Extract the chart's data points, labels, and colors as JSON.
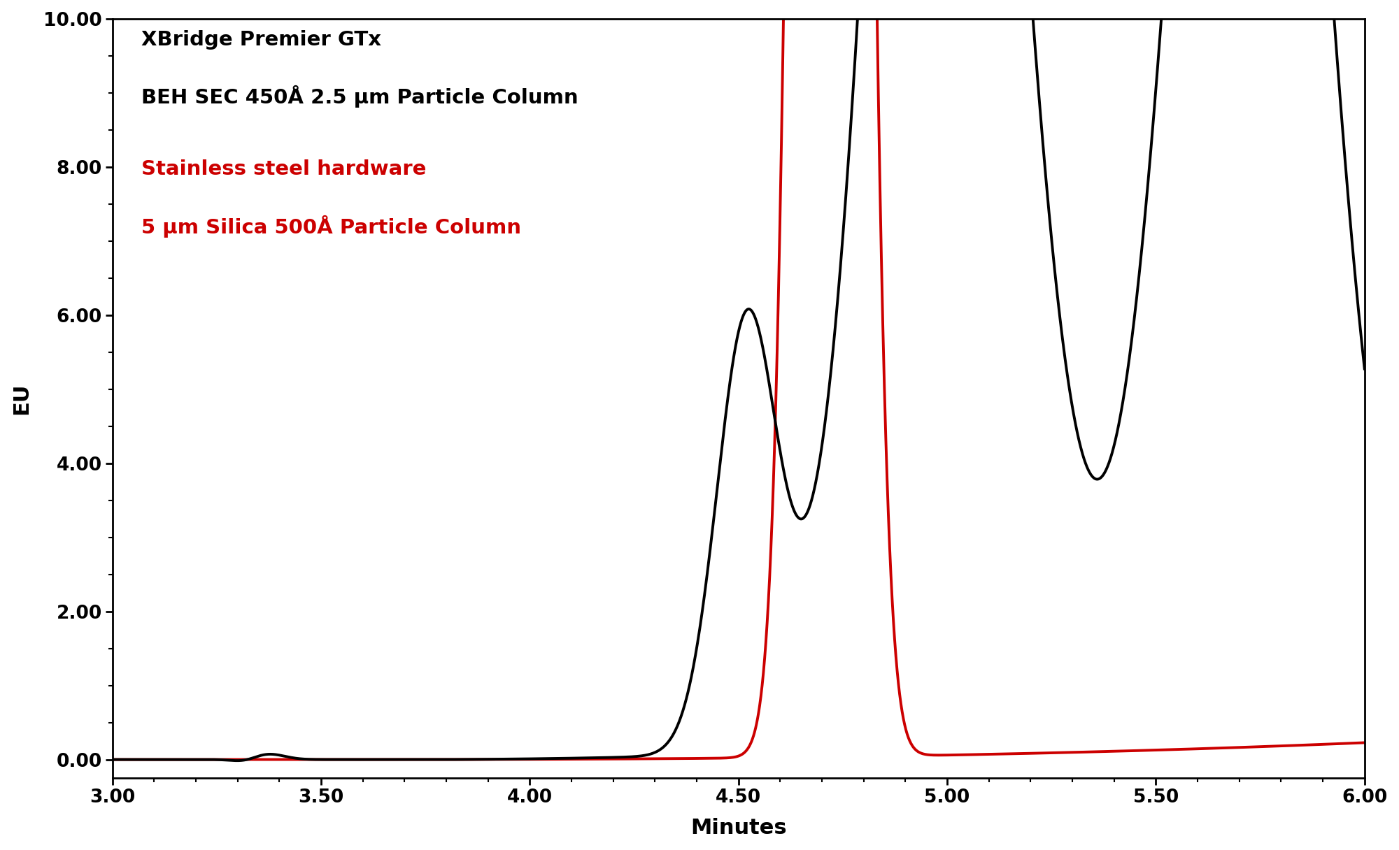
{
  "title_black_line1": "XBridge Premier GTx",
  "title_black_line2": "BEH SEC 450Å 2.5 μm Particle Column",
  "title_red_line1": "Stainless steel hardware",
  "title_red_line2": "5 μm Silica 500Å Particle Column",
  "xlabel": "Minutes",
  "ylabel": "EU",
  "xlim": [
    3.0,
    6.0
  ],
  "ylim": [
    -0.25,
    10.0
  ],
  "yticks": [
    0.0,
    2.0,
    4.0,
    6.0,
    8.0,
    10.0
  ],
  "ytick_labels": [
    "0.00",
    "2.00",
    "4.00",
    "6.00",
    "8.00",
    "10.00"
  ],
  "xticks": [
    3.0,
    3.5,
    4.0,
    4.5,
    5.0,
    5.5,
    6.0
  ],
  "xtick_labels": [
    "3.00",
    "3.50",
    "4.00",
    "4.50",
    "5.00",
    "5.50",
    "6.00"
  ],
  "black_color": "#000000",
  "red_color": "#cc0000",
  "background_color": "#ffffff",
  "line_width": 2.8,
  "annotation_fontsize": 21,
  "axis_label_fontsize": 22,
  "tick_fontsize": 19
}
